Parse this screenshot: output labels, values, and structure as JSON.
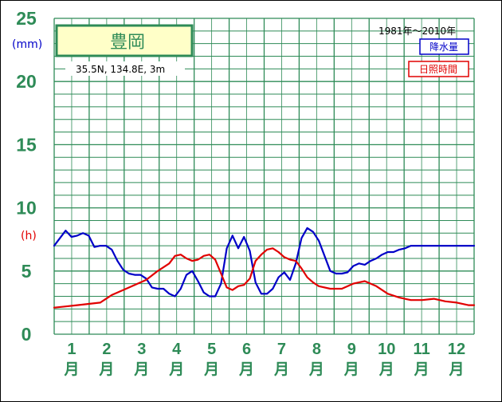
{
  "chart_data": {
    "type": "line",
    "station": "豊岡",
    "location": "35.5N,  134.8E,  3m",
    "period": "1981年〜2010年",
    "units": {
      "precipitation": "(mm)",
      "sunshine": "(h)"
    },
    "y_ticks": [
      "0",
      "5",
      "10",
      "15",
      "20",
      "25"
    ],
    "ylim": [
      0,
      25
    ],
    "months": [
      "1",
      "2",
      "3",
      "4",
      "5",
      "6",
      "7",
      "8",
      "9",
      "10",
      "11",
      "12"
    ],
    "month_suffix": "月",
    "x_unit": "半旬",
    "xlim": [
      0,
      73
    ],
    "series": [
      {
        "name": "降水量",
        "color": "#0000c8",
        "x": [
          0,
          2,
          3,
          4,
          5,
          6,
          7,
          8,
          9,
          10,
          11,
          12,
          13,
          14,
          15,
          16,
          17,
          18,
          19,
          20,
          21,
          22,
          23,
          24,
          25,
          26,
          27,
          28,
          29,
          30,
          31,
          32,
          33,
          34,
          35,
          36,
          37,
          38,
          39,
          40,
          41,
          42,
          43,
          44,
          45,
          46,
          47,
          48,
          49,
          50,
          51,
          52,
          53,
          54,
          55,
          56,
          57,
          58,
          59,
          60,
          61,
          62,
          63,
          64,
          65,
          66,
          67,
          68,
          69,
          70,
          71,
          72,
          73
        ],
        "values": [
          7.0,
          8.2,
          7.7,
          7.8,
          8.0,
          7.8,
          6.9,
          7.0,
          7.0,
          6.7,
          5.8,
          5.1,
          4.8,
          4.7,
          4.7,
          4.4,
          3.7,
          3.6,
          3.6,
          3.2,
          3.0,
          3.6,
          4.7,
          5.0,
          4.2,
          3.3,
          3.0,
          3.0,
          4.0,
          6.8,
          7.8,
          6.8,
          7.7,
          6.6,
          4.1,
          3.2,
          3.2,
          3.6,
          4.5,
          4.9,
          4.3,
          5.6,
          7.6,
          8.4,
          8.1,
          7.4,
          6.2,
          5.0,
          4.8,
          4.8,
          4.9,
          5.4,
          5.6,
          5.5,
          5.8,
          6.0,
          6.3,
          6.5,
          6.5,
          6.7,
          6.8,
          7.0,
          7.0,
          7.0,
          7.0,
          7.0,
          7.0,
          7.0,
          7.0,
          7.0,
          7.0,
          7.0,
          7.0
        ]
      },
      {
        "name": "日照時間",
        "color": "#e10000",
        "x": [
          0,
          2,
          4,
          6,
          8,
          10,
          12,
          14,
          16,
          18,
          20,
          21,
          22,
          23,
          24,
          25,
          26,
          27,
          28,
          29,
          30,
          31,
          32,
          33,
          34,
          35,
          36,
          37,
          38,
          39,
          40,
          41,
          42,
          43,
          44,
          45,
          46,
          48,
          50,
          52,
          54,
          56,
          58,
          60,
          62,
          64,
          66,
          68,
          70,
          72,
          73
        ],
        "values": [
          2.1,
          2.2,
          2.3,
          2.4,
          2.5,
          3.1,
          3.5,
          3.9,
          4.3,
          5.0,
          5.6,
          6.2,
          6.3,
          6.0,
          5.8,
          5.9,
          6.2,
          6.3,
          5.9,
          4.8,
          3.7,
          3.5,
          3.8,
          3.9,
          4.4,
          5.8,
          6.3,
          6.7,
          6.8,
          6.5,
          6.1,
          5.9,
          5.8,
          5.2,
          4.5,
          4.1,
          3.8,
          3.6,
          3.6,
          4.0,
          4.2,
          3.8,
          3.2,
          2.9,
          2.7,
          2.7,
          2.8,
          2.6,
          2.5,
          2.3,
          2.3
        ]
      }
    ]
  }
}
